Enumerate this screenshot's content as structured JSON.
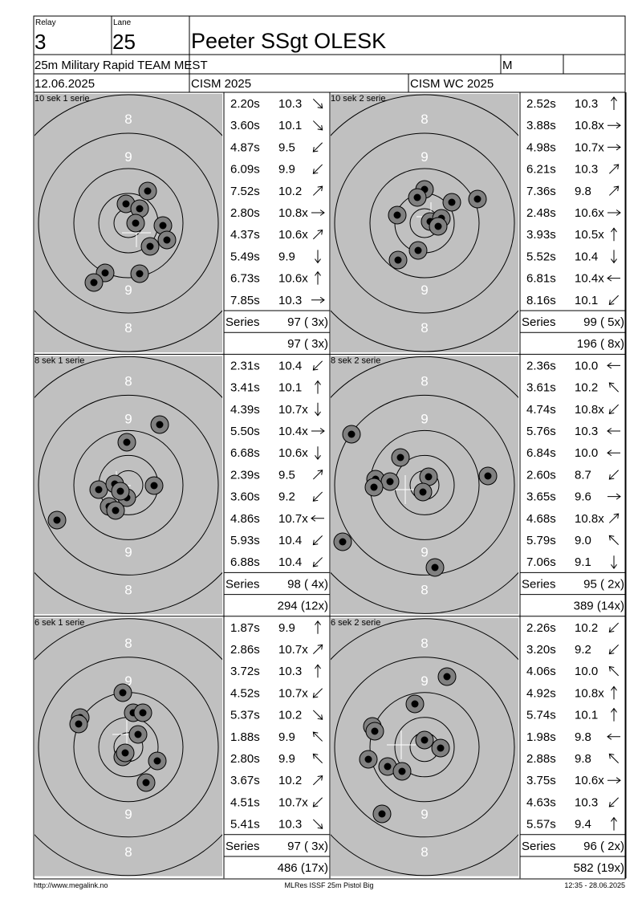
{
  "header": {
    "relay_label": "Relay",
    "relay": "3",
    "lane_label": "Lane",
    "lane": "25",
    "name": "Peeter SSgt OLESK",
    "event": "25m Military Rapid TEAM MEST",
    "gender": "M",
    "date": "12.06.2025",
    "competition": "CISM 2025",
    "match": "CISM WC 2025"
  },
  "target_labels": [
    "8",
    "9",
    "9",
    "8"
  ],
  "series": [
    {
      "title": "10 sek 1 serie",
      "shots": [
        {
          "time": "2.20s",
          "score": "10.3"
        },
        {
          "time": "3.60s",
          "score": "10.1"
        },
        {
          "time": "4.87s",
          "score": "9.5"
        },
        {
          "time": "6.09s",
          "score": "9.9"
        },
        {
          "time": "7.52s",
          "score": "10.2"
        },
        {
          "time": "2.80s",
          "score": "10.8x"
        },
        {
          "time": "4.37s",
          "score": "10.6x"
        },
        {
          "time": "5.49s",
          "score": "9.9"
        },
        {
          "time": "6.73s",
          "score": "10.6x"
        },
        {
          "time": "7.85s",
          "score": "10.3"
        }
      ],
      "series_label": "Series",
      "series_total": "97 ( 3x)",
      "running_total": "97 ( 3x)"
    },
    {
      "title": "10 sek 2 serie",
      "shots": [
        {
          "time": "2.52s",
          "score": "10.3"
        },
        {
          "time": "3.88s",
          "score": "10.8x"
        },
        {
          "time": "4.98s",
          "score": "10.7x"
        },
        {
          "time": "6.21s",
          "score": "10.3"
        },
        {
          "time": "7.36s",
          "score": "9.8"
        },
        {
          "time": "2.48s",
          "score": "10.6x"
        },
        {
          "time": "3.93s",
          "score": "10.5x"
        },
        {
          "time": "5.52s",
          "score": "10.4"
        },
        {
          "time": "6.81s",
          "score": "10.4x"
        },
        {
          "time": "8.16s",
          "score": "10.1"
        }
      ],
      "series_label": "Series",
      "series_total": "99 ( 5x)",
      "running_total": "196 ( 8x)"
    },
    {
      "title": "8 sek 1 serie",
      "shots": [
        {
          "time": "2.31s",
          "score": "10.4"
        },
        {
          "time": "3.41s",
          "score": "10.1"
        },
        {
          "time": "4.39s",
          "score": "10.7x"
        },
        {
          "time": "5.50s",
          "score": "10.4x"
        },
        {
          "time": "6.68s",
          "score": "10.6x"
        },
        {
          "time": "2.39s",
          "score": "9.5"
        },
        {
          "time": "3.60s",
          "score": "9.2"
        },
        {
          "time": "4.86s",
          "score": "10.7x"
        },
        {
          "time": "5.93s",
          "score": "10.4"
        },
        {
          "time": "6.88s",
          "score": "10.4"
        }
      ],
      "series_label": "Series",
      "series_total": "98 ( 4x)",
      "running_total": "294 (12x)"
    },
    {
      "title": "8 sek 2 serie",
      "shots": [
        {
          "time": "2.36s",
          "score": "10.0"
        },
        {
          "time": "3.61s",
          "score": "10.2"
        },
        {
          "time": "4.74s",
          "score": "10.8x"
        },
        {
          "time": "5.76s",
          "score": "10.3"
        },
        {
          "time": "6.84s",
          "score": "10.0"
        },
        {
          "time": "2.60s",
          "score": "8.7"
        },
        {
          "time": "3.65s",
          "score": "9.6"
        },
        {
          "time": "4.68s",
          "score": "10.8x"
        },
        {
          "time": "5.79s",
          "score": "9.0"
        },
        {
          "time": "7.06s",
          "score": "9.1"
        }
      ],
      "series_label": "Series",
      "series_total": "95 ( 2x)",
      "running_total": "389 (14x)"
    },
    {
      "title": "6 sek 1 serie",
      "shots": [
        {
          "time": "1.87s",
          "score": "9.9"
        },
        {
          "time": "2.86s",
          "score": "10.7x"
        },
        {
          "time": "3.72s",
          "score": "10.3"
        },
        {
          "time": "4.52s",
          "score": "10.7x"
        },
        {
          "time": "5.37s",
          "score": "10.2"
        },
        {
          "time": "1.88s",
          "score": "9.9"
        },
        {
          "time": "2.80s",
          "score": "9.9"
        },
        {
          "time": "3.67s",
          "score": "10.2"
        },
        {
          "time": "4.51s",
          "score": "10.7x"
        },
        {
          "time": "5.41s",
          "score": "10.3"
        }
      ],
      "series_label": "Series",
      "series_total": "97 ( 3x)",
      "running_total": "486 (17x)"
    },
    {
      "title": "6 sek 2 serie",
      "shots": [
        {
          "time": "2.26s",
          "score": "10.2"
        },
        {
          "time": "3.20s",
          "score": "9.2"
        },
        {
          "time": "4.06s",
          "score": "10.0"
        },
        {
          "time": "4.92s",
          "score": "10.8x"
        },
        {
          "time": "5.74s",
          "score": "10.1"
        },
        {
          "time": "1.98s",
          "score": "9.8"
        },
        {
          "time": "2.88s",
          "score": "9.8"
        },
        {
          "time": "3.75s",
          "score": "10.6x"
        },
        {
          "time": "4.63s",
          "score": "10.3"
        },
        {
          "time": "5.57s",
          "score": "9.4"
        }
      ],
      "series_label": "Series",
      "series_total": "96 ( 2x)",
      "running_total": "582 (19x)"
    }
  ],
  "footer": {
    "url": "http://www.megalink.no",
    "software": "MLRes ISSF 25m Pistol Big",
    "timestamp": "12:35 - 28.06.2025"
  }
}
